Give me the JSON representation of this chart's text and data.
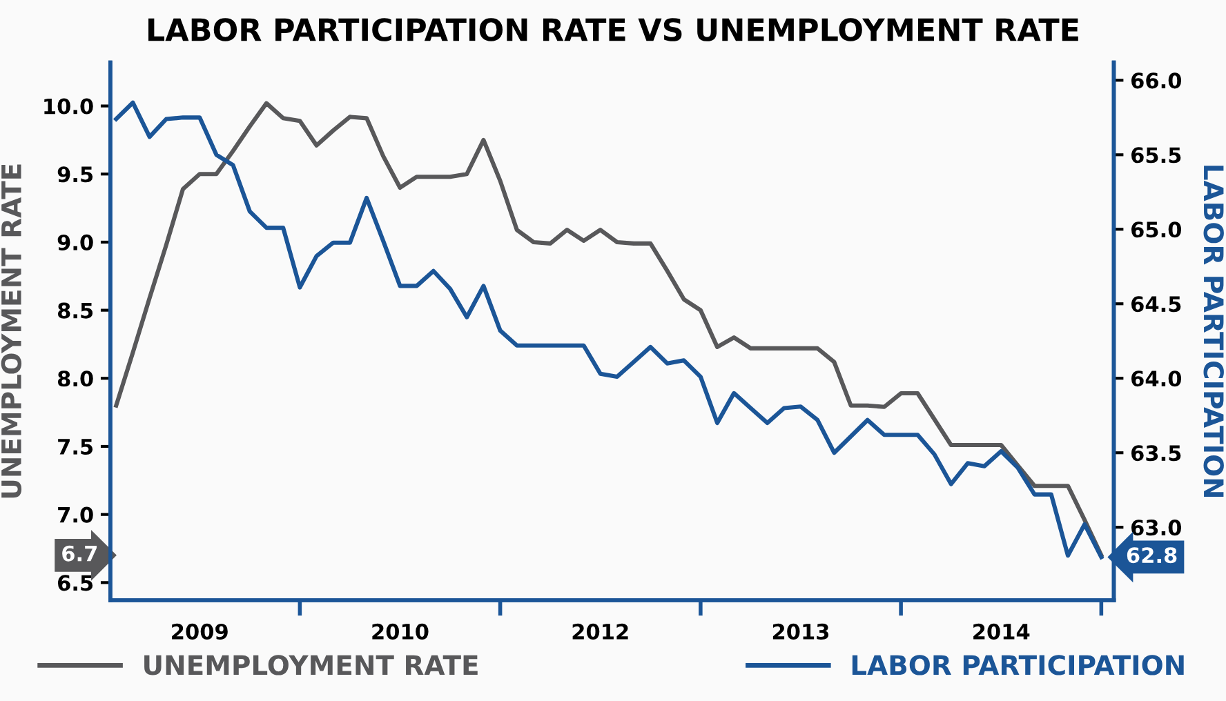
{
  "chart_data": {
    "type": "line",
    "title": "LABOR PARTICIPATION RATE VS UNEMPLOYMENT RATE",
    "ylabel": "UNEMPLOYMENT RATE",
    "y2label": "LABOR PARTICIPATION",
    "categories": [
      null,
      null,
      null,
      null,
      null,
      "2009",
      null,
      null,
      null,
      null,
      null,
      null,
      null,
      null,
      null,
      null,
      null,
      "2010",
      null,
      null,
      null,
      null,
      null,
      null,
      null,
      null,
      null,
      null,
      null,
      "2012",
      null,
      null,
      null,
      null,
      null,
      null,
      null,
      null,
      null,
      null,
      null,
      "2013",
      null,
      null,
      null,
      null,
      null,
      null,
      null,
      null,
      null,
      null,
      null,
      "2014",
      null,
      null,
      null,
      null,
      null,
      null
    ],
    "ylim": [
      6.37,
      10.32
    ],
    "yticks": [
      {
        "value": 6.5,
        "label": "6.5"
      },
      {
        "value": 7,
        "label": "7.0"
      },
      {
        "value": 7.5,
        "label": "7.5"
      },
      {
        "value": 8,
        "label": "8.0"
      },
      {
        "value": 8.5,
        "label": "8.5"
      },
      {
        "value": 9,
        "label": "9.0"
      },
      {
        "value": 9.5,
        "label": "9.5"
      },
      {
        "value": 10,
        "label": "10.0"
      }
    ],
    "y2lim": [
      62.51,
      66.12
    ],
    "y2ticks": [
      {
        "value": 63,
        "label": "63.0"
      },
      {
        "value": 63.5,
        "label": "63.5"
      },
      {
        "value": 64,
        "label": "64.0"
      },
      {
        "value": 64.5,
        "label": "64.5"
      },
      {
        "value": 65,
        "label": "65.0"
      },
      {
        "value": 65.5,
        "label": "65.5"
      },
      {
        "value": 66,
        "label": "66.0"
      }
    ],
    "legend": "bottom",
    "annotations": [
      "6.7",
      "62.8"
    ],
    "series": [
      {
        "name": "UNEMPLOYMENT RATE",
        "color": "#58585a",
        "values": [
          7.8,
          8.19,
          8.59,
          8.98,
          9.39,
          9.5,
          9.5,
          9.67,
          9.85,
          10.02,
          9.91,
          9.89,
          9.71,
          9.82,
          9.92,
          9.91,
          9.63,
          9.4,
          9.48,
          9.48,
          9.48,
          9.5,
          9.75,
          9.45,
          9.09,
          9.0,
          8.99,
          9.09,
          9.01,
          9.09,
          9.0,
          8.99,
          8.99,
          8.79,
          8.58,
          8.5,
          8.23,
          8.3,
          8.22,
          8.22,
          8.22,
          8.22,
          8.22,
          8.12,
          7.8,
          7.8,
          7.79,
          7.89,
          7.89,
          7.7,
          7.51,
          7.51,
          7.51,
          7.51,
          7.36,
          7.21,
          7.21,
          7.21,
          6.96,
          6.7
        ]
      },
      {
        "name": "LABOR PARTICIPATION",
        "color": "#1b5597",
        "axis": "y2",
        "values": [
          65.74,
          65.85,
          65.62,
          65.74,
          65.75,
          65.75,
          65.5,
          65.43,
          65.12,
          65.01,
          65.01,
          64.61,
          64.82,
          64.91,
          64.91,
          65.21,
          64.92,
          64.62,
          64.62,
          64.72,
          64.6,
          64.41,
          64.62,
          64.32,
          64.22,
          64.22,
          64.22,
          64.22,
          64.22,
          64.03,
          64.01,
          64.11,
          64.21,
          64.1,
          64.12,
          64.01,
          63.7,
          63.9,
          63.8,
          63.7,
          63.8,
          63.81,
          63.72,
          63.5,
          63.61,
          63.72,
          63.62,
          63.62,
          63.62,
          63.49,
          63.29,
          63.43,
          63.41,
          63.51,
          63.4,
          63.22,
          63.22,
          62.81,
          63.02,
          62.8
        ]
      }
    ]
  }
}
